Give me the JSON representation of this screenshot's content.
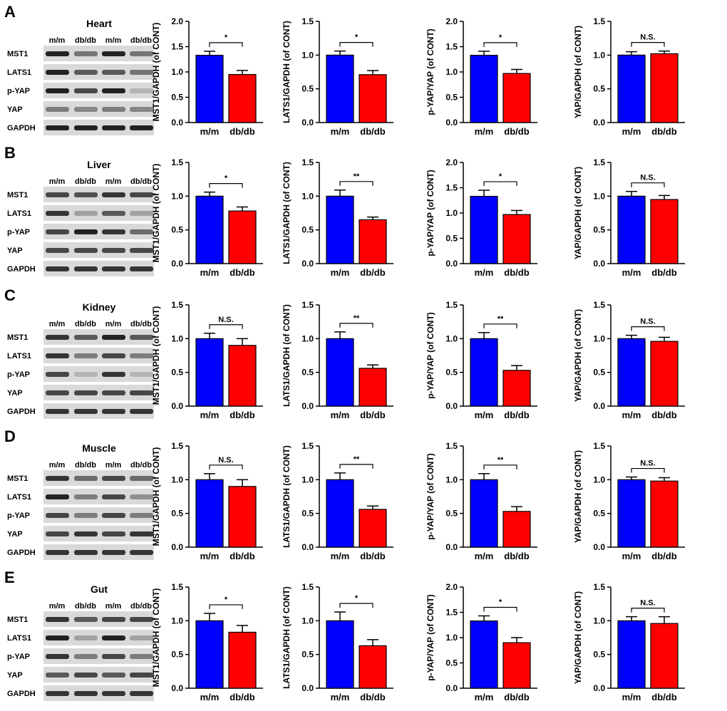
{
  "colors": {
    "control": "#0000ff",
    "diabetic": "#ff0000",
    "band": "#222222",
    "blot_bg": "#d9d9d9"
  },
  "conditions": [
    "m/m",
    "db/db"
  ],
  "lane_labels": [
    "m/m",
    "db/db",
    "m/m",
    "db/db"
  ],
  "blot_rows": [
    "MST1",
    "LATS1",
    "p-YAP",
    "YAP",
    "GAPDH"
  ],
  "ylabels": [
    "MST1/GAPDH (of CONT)",
    "LATS1/GAPDH (of CONT)",
    "p-YAP/YAP (of CONT)",
    "YAP/GAPDH (of CONT)"
  ],
  "panels": [
    {
      "letter": "A",
      "tissue": "Heart",
      "band_intensity": [
        [
          1,
          0.55,
          1,
          0.55
        ],
        [
          1,
          0.7,
          0.7,
          0.55
        ],
        [
          1,
          0.8,
          1,
          0.2
        ],
        [
          0.5,
          0.45,
          0.5,
          0.45
        ],
        [
          1,
          1,
          1,
          1
        ]
      ],
      "charts": [
        {
          "ylim": [
            0,
            2.0
          ],
          "ticks": [
            "0.0",
            "0.5",
            "1.0",
            "1.5",
            "2.0"
          ],
          "values": [
            1.33,
            0.95
          ],
          "errors": [
            0.08,
            0.08
          ],
          "sig": "*"
        },
        {
          "ylim": [
            0,
            1.5
          ],
          "ticks": [
            "0.0",
            "0.5",
            "1.0",
            "1.5"
          ],
          "values": [
            1.0,
            0.71
          ],
          "errors": [
            0.06,
            0.06
          ],
          "sig": "*"
        },
        {
          "ylim": [
            0,
            2.0
          ],
          "ticks": [
            "0.0",
            "0.5",
            "1.0",
            "1.5",
            "2.0"
          ],
          "values": [
            1.33,
            0.97
          ],
          "errors": [
            0.08,
            0.08
          ],
          "sig": "*"
        },
        {
          "ylim": [
            0,
            1.5
          ],
          "ticks": [
            "0.0",
            "0.5",
            "1.0",
            "1.5"
          ],
          "values": [
            1.0,
            1.02
          ],
          "errors": [
            0.05,
            0.04
          ],
          "sig": "N.S."
        }
      ]
    },
    {
      "letter": "B",
      "tissue": "Liver",
      "band_intensity": [
        [
          0.8,
          0.75,
          0.9,
          0.8
        ],
        [
          0.9,
          0.3,
          0.7,
          0.3
        ],
        [
          0.8,
          1,
          0.9,
          0.6
        ],
        [
          0.8,
          0.8,
          0.8,
          0.8
        ],
        [
          0.9,
          0.9,
          0.9,
          0.9
        ]
      ],
      "charts": [
        {
          "ylim": [
            0,
            1.5
          ],
          "ticks": [
            "0.0",
            "0.5",
            "1.0",
            "1.5"
          ],
          "values": [
            1.0,
            0.78
          ],
          "errors": [
            0.06,
            0.06
          ],
          "sig": "*"
        },
        {
          "ylim": [
            0,
            1.5
          ],
          "ticks": [
            "0.0",
            "0.5",
            "1.0",
            "1.5"
          ],
          "values": [
            1.0,
            0.65
          ],
          "errors": [
            0.09,
            0.04
          ],
          "sig": "**"
        },
        {
          "ylim": [
            0,
            2.0
          ],
          "ticks": [
            "0.0",
            "0.5",
            "1.0",
            "1.5",
            "2.0"
          ],
          "values": [
            1.33,
            0.97
          ],
          "errors": [
            0.12,
            0.08
          ],
          "sig": "*"
        },
        {
          "ylim": [
            0,
            1.5
          ],
          "ticks": [
            "0.0",
            "0.5",
            "1.0",
            "1.5"
          ],
          "values": [
            1.0,
            0.95
          ],
          "errors": [
            0.07,
            0.06
          ],
          "sig": "N.S."
        }
      ]
    },
    {
      "letter": "C",
      "tissue": "Kidney",
      "band_intensity": [
        [
          0.9,
          0.7,
          1,
          0.7
        ],
        [
          0.9,
          0.5,
          0.8,
          0.5
        ],
        [
          0.8,
          0.2,
          0.9,
          0.2
        ],
        [
          0.8,
          0.8,
          0.8,
          0.8
        ],
        [
          0.9,
          0.9,
          0.9,
          0.9
        ]
      ],
      "charts": [
        {
          "ylim": [
            0,
            1.5
          ],
          "ticks": [
            "0.0",
            "0.5",
            "1.0",
            "1.5"
          ],
          "values": [
            1.0,
            0.9
          ],
          "errors": [
            0.08,
            0.1
          ],
          "sig": "N.S."
        },
        {
          "ylim": [
            0,
            1.5
          ],
          "ticks": [
            "0.0",
            "0.5",
            "1.0",
            "1.5"
          ],
          "values": [
            1.0,
            0.56
          ],
          "errors": [
            0.1,
            0.05
          ],
          "sig": "**"
        },
        {
          "ylim": [
            0,
            1.5
          ],
          "ticks": [
            "0.0",
            "0.5",
            "1.0",
            "1.5"
          ],
          "values": [
            1.0,
            0.53
          ],
          "errors": [
            0.09,
            0.07
          ],
          "sig": "**"
        },
        {
          "ylim": [
            0,
            1.5
          ],
          "ticks": [
            "0.0",
            "0.5",
            "1.0",
            "1.5"
          ],
          "values": [
            1.0,
            0.96
          ],
          "errors": [
            0.05,
            0.06
          ],
          "sig": "N.S."
        }
      ]
    },
    {
      "letter": "D",
      "tissue": "Muscle",
      "band_intensity": [
        [
          0.9,
          0.6,
          0.8,
          0.6
        ],
        [
          1,
          0.5,
          0.8,
          0.4
        ],
        [
          0.8,
          0.5,
          0.8,
          0.5
        ],
        [
          0.8,
          0.9,
          0.8,
          0.9
        ],
        [
          0.9,
          0.9,
          0.9,
          0.9
        ]
      ],
      "charts": [
        {
          "ylim": [
            0,
            1.5
          ],
          "ticks": [
            "0.0",
            "0.5",
            "1.0",
            "1.5"
          ],
          "values": [
            1.0,
            0.9
          ],
          "errors": [
            0.09,
            0.1
          ],
          "sig": "N.S."
        },
        {
          "ylim": [
            0,
            1.5
          ],
          "ticks": [
            "0.0",
            "0.5",
            "1.0",
            "1.5"
          ],
          "values": [
            1.0,
            0.56
          ],
          "errors": [
            0.1,
            0.05
          ],
          "sig": "**"
        },
        {
          "ylim": [
            0,
            1.5
          ],
          "ticks": [
            "0.0",
            "0.5",
            "1.0",
            "1.5"
          ],
          "values": [
            1.0,
            0.53
          ],
          "errors": [
            0.09,
            0.07
          ],
          "sig": "**"
        },
        {
          "ylim": [
            0,
            1.5
          ],
          "ticks": [
            "0.0",
            "0.5",
            "1.0",
            "1.5"
          ],
          "values": [
            1.0,
            0.98
          ],
          "errors": [
            0.04,
            0.05
          ],
          "sig": "N.S."
        }
      ]
    },
    {
      "letter": "E",
      "tissue": "Gut",
      "band_intensity": [
        [
          0.9,
          0.7,
          0.8,
          0.8
        ],
        [
          1,
          0.3,
          1,
          0.3
        ],
        [
          0.9,
          0.5,
          0.8,
          0.5
        ],
        [
          0.7,
          0.8,
          0.7,
          0.8
        ],
        [
          0.9,
          0.9,
          0.9,
          0.9
        ]
      ],
      "charts": [
        {
          "ylim": [
            0,
            1.5
          ],
          "ticks": [
            "0.0",
            "0.5",
            "1.0",
            "1.5"
          ],
          "values": [
            1.0,
            0.83
          ],
          "errors": [
            0.11,
            0.1
          ],
          "sig": "*"
        },
        {
          "ylim": [
            0,
            1.5
          ],
          "ticks": [
            "0.0",
            "0.5",
            "1.0",
            "1.5"
          ],
          "values": [
            1.0,
            0.63
          ],
          "errors": [
            0.13,
            0.09
          ],
          "sig": "*"
        },
        {
          "ylim": [
            0,
            2.0
          ],
          "ticks": [
            "0.0",
            "0.5",
            "1.0",
            "1.5",
            "2.0"
          ],
          "values": [
            1.33,
            0.9
          ],
          "errors": [
            0.1,
            0.1
          ],
          "sig": "*"
        },
        {
          "ylim": [
            0,
            1.5
          ],
          "ticks": [
            "0.0",
            "0.5",
            "1.0",
            "1.5"
          ],
          "values": [
            1.0,
            0.96
          ],
          "errors": [
            0.06,
            0.1
          ],
          "sig": "N.S."
        }
      ]
    }
  ],
  "chart_data": [
    {
      "type": "bar",
      "panel": "A",
      "title": "Heart",
      "categories": [
        "m/m",
        "db/db"
      ],
      "ylabel": "MST1/GAPDH (of CONT)",
      "values": [
        1.33,
        0.95
      ],
      "errors": [
        0.08,
        0.08
      ],
      "ylim": [
        0,
        2.0
      ],
      "annotation": "*"
    },
    {
      "type": "bar",
      "panel": "A",
      "title": "Heart",
      "categories": [
        "m/m",
        "db/db"
      ],
      "ylabel": "LATS1/GAPDH (of CONT)",
      "values": [
        1.0,
        0.71
      ],
      "errors": [
        0.06,
        0.06
      ],
      "ylim": [
        0,
        1.5
      ],
      "annotation": "*"
    },
    {
      "type": "bar",
      "panel": "A",
      "title": "Heart",
      "categories": [
        "m/m",
        "db/db"
      ],
      "ylabel": "p-YAP/YAP (of CONT)",
      "values": [
        1.33,
        0.97
      ],
      "errors": [
        0.08,
        0.08
      ],
      "ylim": [
        0,
        2.0
      ],
      "annotation": "*"
    },
    {
      "type": "bar",
      "panel": "A",
      "title": "Heart",
      "categories": [
        "m/m",
        "db/db"
      ],
      "ylabel": "YAP/GAPDH (of CONT)",
      "values": [
        1.0,
        1.02
      ],
      "errors": [
        0.05,
        0.04
      ],
      "ylim": [
        0,
        1.5
      ],
      "annotation": "N.S."
    },
    {
      "type": "bar",
      "panel": "B",
      "title": "Liver",
      "categories": [
        "m/m",
        "db/db"
      ],
      "ylabel": "MST1/GAPDH (of CONT)",
      "values": [
        1.0,
        0.78
      ],
      "errors": [
        0.06,
        0.06
      ],
      "ylim": [
        0,
        1.5
      ],
      "annotation": "*"
    },
    {
      "type": "bar",
      "panel": "B",
      "title": "Liver",
      "categories": [
        "m/m",
        "db/db"
      ],
      "ylabel": "LATS1/GAPDH (of CONT)",
      "values": [
        1.0,
        0.65
      ],
      "errors": [
        0.09,
        0.04
      ],
      "ylim": [
        0,
        1.5
      ],
      "annotation": "**"
    },
    {
      "type": "bar",
      "panel": "B",
      "title": "Liver",
      "categories": [
        "m/m",
        "db/db"
      ],
      "ylabel": "p-YAP/YAP (of CONT)",
      "values": [
        1.33,
        0.97
      ],
      "errors": [
        0.12,
        0.08
      ],
      "ylim": [
        0,
        2.0
      ],
      "annotation": "*"
    },
    {
      "type": "bar",
      "panel": "B",
      "title": "Liver",
      "categories": [
        "m/m",
        "db/db"
      ],
      "ylabel": "YAP/GAPDH (of CONT)",
      "values": [
        1.0,
        0.95
      ],
      "errors": [
        0.07,
        0.06
      ],
      "ylim": [
        0,
        1.5
      ],
      "annotation": "N.S."
    },
    {
      "type": "bar",
      "panel": "C",
      "title": "Kidney",
      "categories": [
        "m/m",
        "db/db"
      ],
      "ylabel": "MST1/GAPDH (of CONT)",
      "values": [
        1.0,
        0.9
      ],
      "errors": [
        0.08,
        0.1
      ],
      "ylim": [
        0,
        1.5
      ],
      "annotation": "N.S."
    },
    {
      "type": "bar",
      "panel": "C",
      "title": "Kidney",
      "categories": [
        "m/m",
        "db/db"
      ],
      "ylabel": "LATS1/GAPDH (of CONT)",
      "values": [
        1.0,
        0.56
      ],
      "errors": [
        0.1,
        0.05
      ],
      "ylim": [
        0,
        1.5
      ],
      "annotation": "**"
    },
    {
      "type": "bar",
      "panel": "C",
      "title": "Kidney",
      "categories": [
        "m/m",
        "db/db"
      ],
      "ylabel": "p-YAP/YAP (of CONT)",
      "values": [
        1.0,
        0.53
      ],
      "errors": [
        0.09,
        0.07
      ],
      "ylim": [
        0,
        1.5
      ],
      "annotation": "**"
    },
    {
      "type": "bar",
      "panel": "C",
      "title": "Kidney",
      "categories": [
        "m/m",
        "db/db"
      ],
      "ylabel": "YAP/GAPDH (of CONT)",
      "values": [
        1.0,
        0.96
      ],
      "errors": [
        0.05,
        0.06
      ],
      "ylim": [
        0,
        1.5
      ],
      "annotation": "N.S."
    },
    {
      "type": "bar",
      "panel": "D",
      "title": "Muscle",
      "categories": [
        "m/m",
        "db/db"
      ],
      "ylabel": "MST1/GAPDH (of CONT)",
      "values": [
        1.0,
        0.9
      ],
      "errors": [
        0.09,
        0.1
      ],
      "ylim": [
        0,
        1.5
      ],
      "annotation": "N.S."
    },
    {
      "type": "bar",
      "panel": "D",
      "title": "Muscle",
      "categories": [
        "m/m",
        "db/db"
      ],
      "ylabel": "LATS1/GAPDH (of CONT)",
      "values": [
        1.0,
        0.56
      ],
      "errors": [
        0.1,
        0.05
      ],
      "ylim": [
        0,
        1.5
      ],
      "annotation": "**"
    },
    {
      "type": "bar",
      "panel": "D",
      "title": "Muscle",
      "categories": [
        "m/m",
        "db/db"
      ],
      "ylabel": "p-YAP/YAP (of CONT)",
      "values": [
        1.0,
        0.53
      ],
      "errors": [
        0.09,
        0.07
      ],
      "ylim": [
        0,
        1.5
      ],
      "annotation": "**"
    },
    {
      "type": "bar",
      "panel": "D",
      "title": "Muscle",
      "categories": [
        "m/m",
        "db/db"
      ],
      "ylabel": "YAP/GAPDH (of CONT)",
      "values": [
        1.0,
        0.98
      ],
      "errors": [
        0.04,
        0.05
      ],
      "ylim": [
        0,
        1.5
      ],
      "annotation": "N.S."
    },
    {
      "type": "bar",
      "panel": "E",
      "title": "Gut",
      "categories": [
        "m/m",
        "db/db"
      ],
      "ylabel": "MST1/GAPDH (of CONT)",
      "values": [
        1.0,
        0.83
      ],
      "errors": [
        0.11,
        0.1
      ],
      "ylim": [
        0,
        1.5
      ],
      "annotation": "*"
    },
    {
      "type": "bar",
      "panel": "E",
      "title": "Gut",
      "categories": [
        "m/m",
        "db/db"
      ],
      "ylabel": "LATS1/GAPDH (of CONT)",
      "values": [
        1.0,
        0.63
      ],
      "errors": [
        0.13,
        0.09
      ],
      "ylim": [
        0,
        1.5
      ],
      "annotation": "*"
    },
    {
      "type": "bar",
      "panel": "E",
      "title": "Gut",
      "categories": [
        "m/m",
        "db/db"
      ],
      "ylabel": "p-YAP/YAP (of CONT)",
      "values": [
        1.33,
        0.9
      ],
      "errors": [
        0.1,
        0.1
      ],
      "ylim": [
        0,
        2.0
      ],
      "annotation": "*"
    },
    {
      "type": "bar",
      "panel": "E",
      "title": "Gut",
      "categories": [
        "m/m",
        "db/db"
      ],
      "ylabel": "YAP/GAPDH (of CONT)",
      "values": [
        1.0,
        0.96
      ],
      "errors": [
        0.06,
        0.1
      ],
      "ylim": [
        0,
        1.5
      ],
      "annotation": "N.S."
    }
  ]
}
